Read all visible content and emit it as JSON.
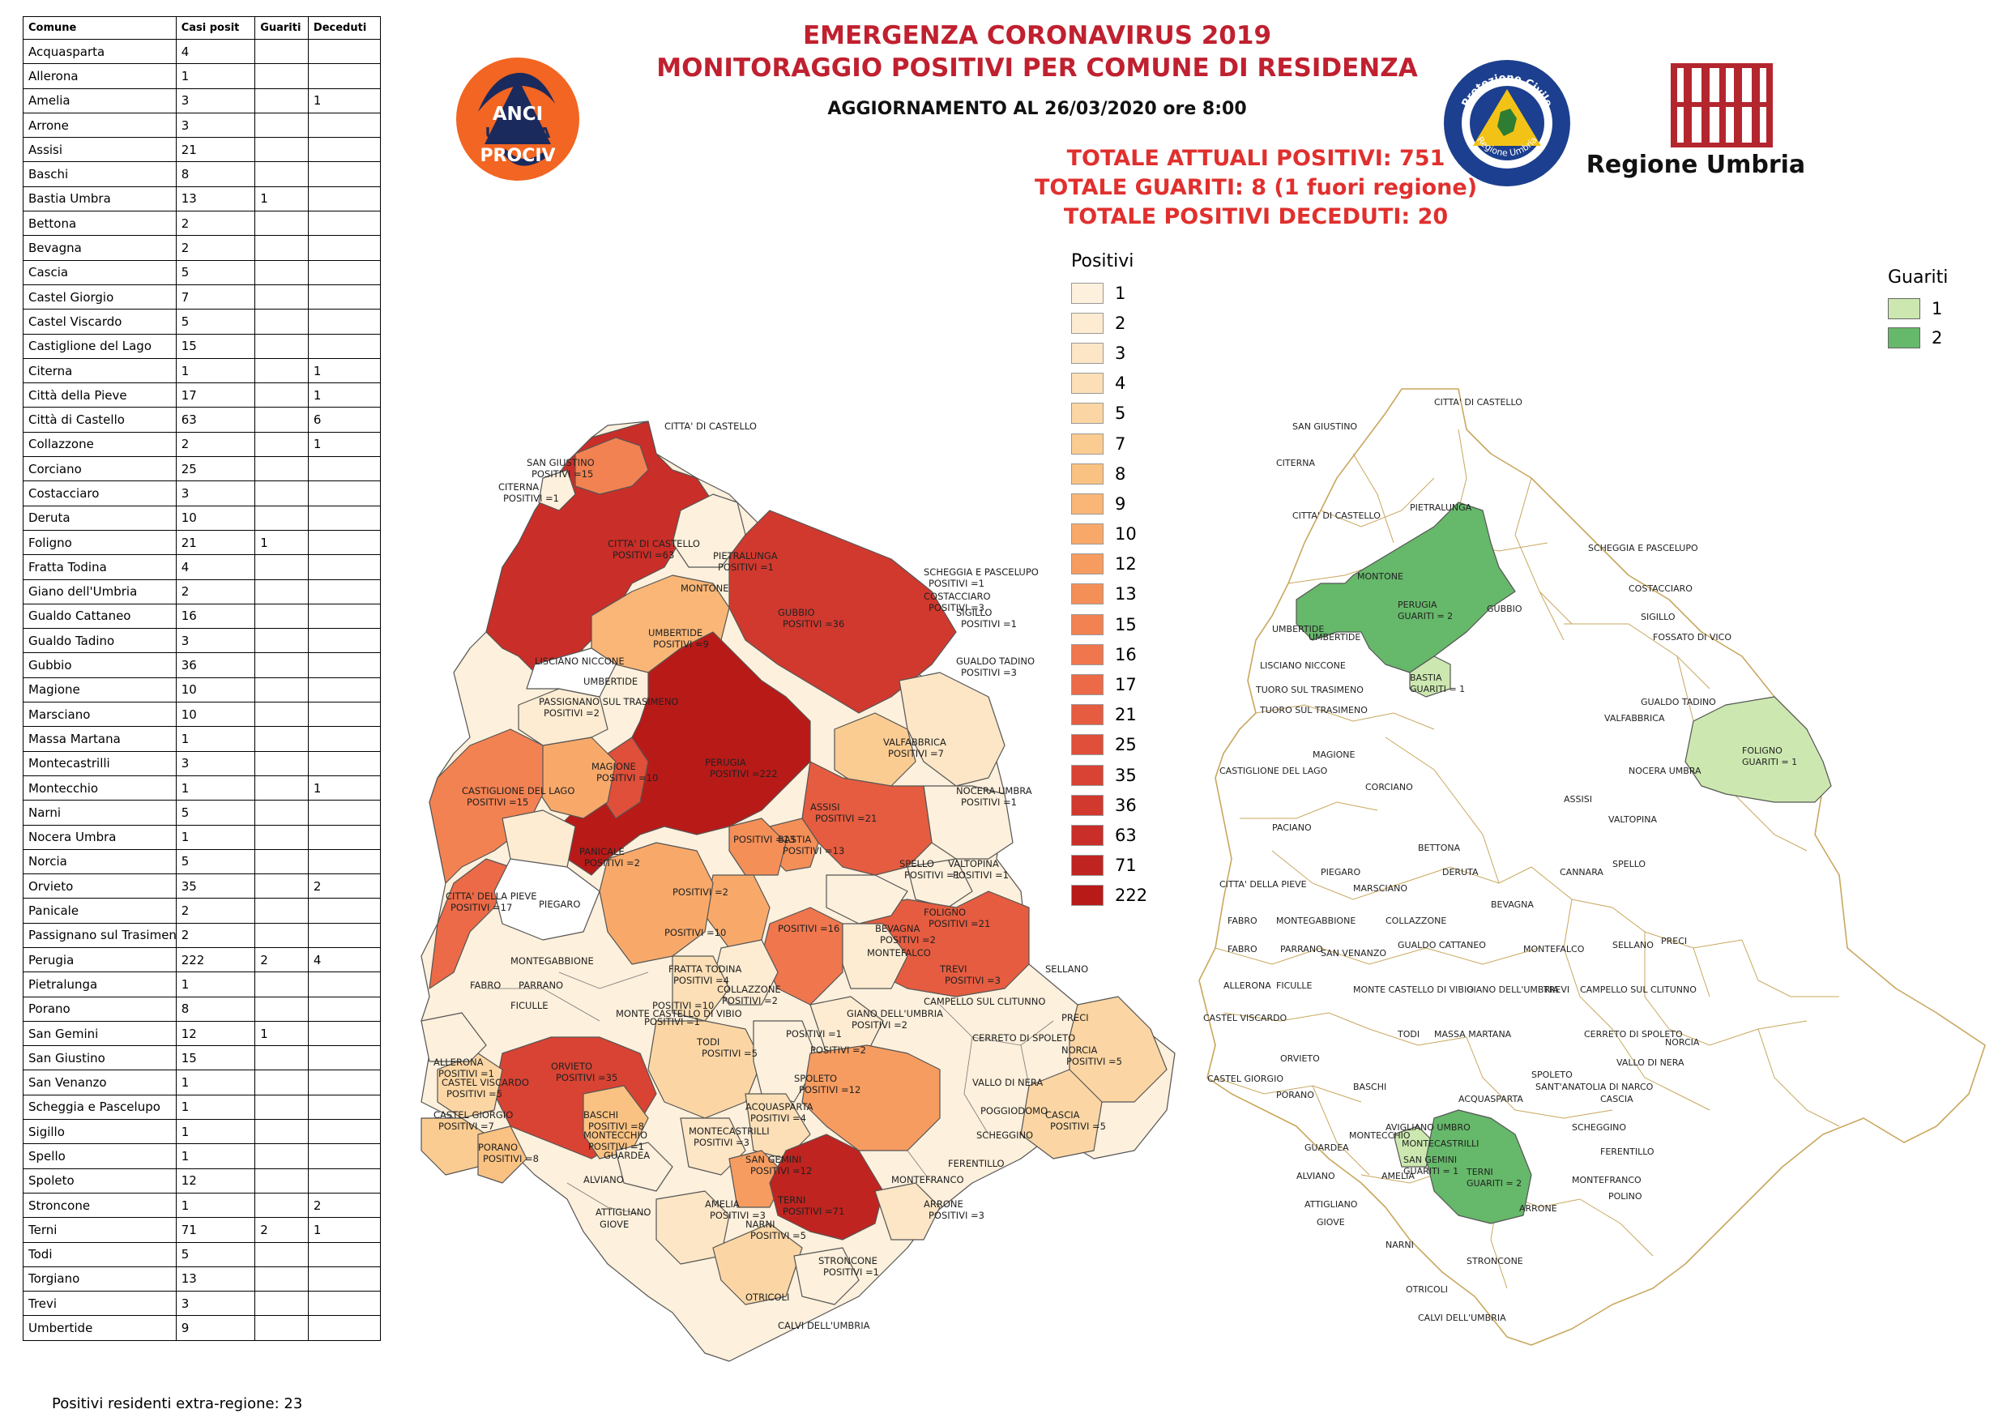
{
  "header": {
    "title_line1": "EMERGENZA CORONAVIRUS 2019",
    "title_line2": "MONITORAGGIO POSITIVI PER COMUNE DI RESIDENZA",
    "update": "AGGIORNAMENTO AL 26/03/2020 ore 8:00",
    "total_positive": "TOTALE ATTUALI POSITIVI: 751",
    "total_recovered": "TOTALE GUARITI:  8 (1 fuori regione)",
    "total_deceased": "TOTALE POSITIVI DECEDUTI: 20"
  },
  "logos": {
    "anci": {
      "line1": "ANCI",
      "line2": "UMBRIA",
      "line3": "PROCIV"
    },
    "protezione_civile": {
      "top": "Protezione Civile",
      "bottom": "Regione Umbria"
    },
    "regione": "Regione Umbria"
  },
  "table": {
    "headers": [
      "Comune",
      "Casi posit",
      "Guariti",
      "Deceduti"
    ],
    "rows": [
      [
        "Acquasparta",
        "4",
        "",
        ""
      ],
      [
        "Allerona",
        "1",
        "",
        ""
      ],
      [
        "Amelia",
        "3",
        "",
        "1"
      ],
      [
        "Arrone",
        "3",
        "",
        ""
      ],
      [
        "Assisi",
        "21",
        "",
        ""
      ],
      [
        "Baschi",
        "8",
        "",
        ""
      ],
      [
        "Bastia Umbra",
        "13",
        "1",
        ""
      ],
      [
        "Bettona",
        "2",
        "",
        ""
      ],
      [
        "Bevagna",
        "2",
        "",
        ""
      ],
      [
        "Cascia",
        "5",
        "",
        ""
      ],
      [
        "Castel Giorgio",
        "7",
        "",
        ""
      ],
      [
        "Castel Viscardo",
        "5",
        "",
        ""
      ],
      [
        "Castiglione del Lago",
        "15",
        "",
        ""
      ],
      [
        "Citerna",
        "1",
        "",
        "1"
      ],
      [
        "Città  della Pieve",
        "17",
        "",
        "1"
      ],
      [
        "Città  di Castello",
        "63",
        "",
        "6"
      ],
      [
        "Collazzone",
        "2",
        "",
        "1"
      ],
      [
        "Corciano",
        "25",
        "",
        ""
      ],
      [
        "Costacciaro",
        "3",
        "",
        ""
      ],
      [
        "Deruta",
        "10",
        "",
        ""
      ],
      [
        "Foligno",
        "21",
        "1",
        ""
      ],
      [
        "Fratta Todina",
        "4",
        "",
        ""
      ],
      [
        "Giano dell'Umbria",
        "2",
        "",
        ""
      ],
      [
        "Gualdo Cattaneo",
        "16",
        "",
        ""
      ],
      [
        "Gualdo Tadino",
        "3",
        "",
        ""
      ],
      [
        "Gubbio",
        "36",
        "",
        ""
      ],
      [
        "Magione",
        "10",
        "",
        ""
      ],
      [
        "Marsciano",
        "10",
        "",
        ""
      ],
      [
        "Massa Martana",
        "1",
        "",
        ""
      ],
      [
        "Montecastrilli",
        "3",
        "",
        ""
      ],
      [
        "Montecchio",
        "1",
        "",
        "1"
      ],
      [
        "Narni",
        "5",
        "",
        ""
      ],
      [
        "Nocera Umbra",
        "1",
        "",
        ""
      ],
      [
        "Norcia",
        "5",
        "",
        ""
      ],
      [
        "Orvieto",
        "35",
        "",
        "2"
      ],
      [
        "Panicale",
        "2",
        "",
        ""
      ],
      [
        "Passignano sul Trasimeno",
        "2",
        "",
        ""
      ],
      [
        "Perugia",
        "222",
        "2",
        "4"
      ],
      [
        "Pietralunga",
        "1",
        "",
        ""
      ],
      [
        "Porano",
        "8",
        "",
        ""
      ],
      [
        "San Gemini",
        "12",
        "1",
        ""
      ],
      [
        "San Giustino",
        "15",
        "",
        ""
      ],
      [
        "San Venanzo",
        "1",
        "",
        ""
      ],
      [
        "Scheggia e Pascelupo",
        "1",
        "",
        ""
      ],
      [
        "Sigillo",
        "1",
        "",
        ""
      ],
      [
        "Spello",
        "1",
        "",
        ""
      ],
      [
        "Spoleto",
        "12",
        "",
        ""
      ],
      [
        "Stroncone",
        "1",
        "",
        "2"
      ],
      [
        "Terni",
        "71",
        "2",
        "1"
      ],
      [
        "Todi",
        "5",
        "",
        ""
      ],
      [
        "Torgiano",
        "13",
        "",
        ""
      ],
      [
        "Trevi",
        "3",
        "",
        ""
      ],
      [
        "Umbertide",
        "9",
        "",
        ""
      ]
    ]
  },
  "extra_region": "Positivi residenti extra-regione: 23",
  "legend_positivi": {
    "title": "Positivi",
    "items": [
      {
        "label": "1",
        "color": "#fdf0dc"
      },
      {
        "label": "2",
        "color": "#fdecd2"
      },
      {
        "label": "3",
        "color": "#fde6c6"
      },
      {
        "label": "4",
        "color": "#fcdfb6"
      },
      {
        "label": "5",
        "color": "#fbd6a4"
      },
      {
        "label": "7",
        "color": "#fbcc92"
      },
      {
        "label": "8",
        "color": "#fac282"
      },
      {
        "label": "9",
        "color": "#f9b676"
      },
      {
        "label": "10",
        "color": "#f8a96a"
      },
      {
        "label": "12",
        "color": "#f79c60"
      },
      {
        "label": "13",
        "color": "#f58f58"
      },
      {
        "label": "15",
        "color": "#f38252"
      },
      {
        "label": "16",
        "color": "#f0764d"
      },
      {
        "label": "17",
        "color": "#ec6a47"
      },
      {
        "label": "21",
        "color": "#e65c40"
      },
      {
        "label": "25",
        "color": "#df4f39"
      },
      {
        "label": "35",
        "color": "#d84333"
      },
      {
        "label": "36",
        "color": "#d1392e"
      },
      {
        "label": "63",
        "color": "#c92e28"
      },
      {
        "label": "71",
        "color": "#c02420"
      },
      {
        "label": "222",
        "color": "#b81a18"
      }
    ]
  },
  "legend_guariti": {
    "title": "Guariti",
    "items": [
      {
        "label": "1",
        "color": "#cce8b0"
      },
      {
        "label": "2",
        "color": "#66b86a"
      }
    ]
  },
  "map_positivi": {
    "labels": [
      {
        "text": "CITTA' DI CASTELLO",
        "count": ""
      },
      {
        "text": "SAN GIUSTINO",
        "count": "POSITIVI =15"
      },
      {
        "text": "CITERNA",
        "count": "POSITIVI =1"
      },
      {
        "text": "CITTA' DI CASTELLO",
        "count": "POSITIVI =63"
      },
      {
        "text": "PIETRALUNGA",
        "count": "POSITIVI =1"
      },
      {
        "text": "MONTONE",
        "count": ""
      },
      {
        "text": "SCHEGGIA E PASCELUPO",
        "count": "POSITIVI =1"
      },
      {
        "text": "COSTACCIARO",
        "count": "POSITIVI =3"
      },
      {
        "text": "SIGILLO",
        "count": "POSITIVI =1"
      },
      {
        "text": "GUBBIO",
        "count": "POSITIVI =36"
      },
      {
        "text": "UMBERTIDE",
        "count": "POSITIVI =9"
      },
      {
        "text": "LISCIANO NICCONE",
        "count": ""
      },
      {
        "text": "PASSIGNANO SUL TRASIMENO",
        "count": "POSITIVI =2"
      },
      {
        "text": "GUALDO TADINO",
        "count": "POSITIVI =3"
      },
      {
        "text": "VALFABBRICA",
        "count": "POSITIVI =7"
      },
      {
        "text": "PERUGIA",
        "count": "POSITIVI =222"
      },
      {
        "text": "MAGIONE",
        "count": "POSITIVI =10"
      },
      {
        "text": "CASTIGLIONE DEL LAGO",
        "count": "POSITIVI =15"
      },
      {
        "text": "NOCERA UMBRA",
        "count": "POSITIVI =1"
      },
      {
        "text": "ASSISI",
        "count": "POSITIVI =21"
      },
      {
        "text": "BASTIA",
        "count": "POSITIVI =13"
      },
      {
        "text": "VALTOPINA",
        "count": "POSITIVI =1"
      },
      {
        "text": "PANICALE",
        "count": "POSITIVI =2"
      },
      {
        "text": "CITTA' DELLA PIEVE",
        "count": "POSITIVI =17"
      },
      {
        "text": "PIEGARO",
        "count": ""
      },
      {
        "text": "SPELLO",
        "count": "POSITIVI =1"
      },
      {
        "text": "FOLIGNO",
        "count": "POSITIVI =21"
      },
      {
        "text": "MONTEGABBIONE",
        "count": ""
      },
      {
        "text": "BEVAGNA",
        "count": "POSITIVI =2"
      },
      {
        "text": "SELLANO",
        "count": ""
      },
      {
        "text": "PRECI",
        "count": ""
      },
      {
        "text": "FRATTA TODINA",
        "count": "POSITIVI =4"
      },
      {
        "text": "TREVI",
        "count": "POSITIVI =3"
      },
      {
        "text": "CAMPELLO SUL CLITUNNO",
        "count": ""
      },
      {
        "text": "FICULLE",
        "count": ""
      },
      {
        "text": "FABRO",
        "count": ""
      },
      {
        "text": "PARRANO",
        "count": ""
      },
      {
        "text": "MONTEFALCO",
        "count": ""
      },
      {
        "text": "ALLERONA",
        "count": "POSITIVI =1"
      },
      {
        "text": "MONTE CASTELLO DI VIBIO",
        "count": ""
      },
      {
        "text": "GIANO DELL'UMBRIA",
        "count": "POSITIVI =2"
      },
      {
        "text": "CERRETO DI SPOLETO",
        "count": ""
      },
      {
        "text": "TODI",
        "count": "POSITIVI =5"
      },
      {
        "text": "NORCIA",
        "count": "POSITIVI =5"
      },
      {
        "text": "CASTEL VISCARDO",
        "count": "POSITIVI =5"
      },
      {
        "text": "ORVIETO",
        "count": "POSITIVI =35"
      },
      {
        "text": "VALLO DI NERA",
        "count": ""
      },
      {
        "text": "SPOLETO",
        "count": "POSITIVI =12"
      },
      {
        "text": "POGGIODOMO",
        "count": ""
      },
      {
        "text": "CASTEL GIORGIO",
        "count": "POSITIVI =7"
      },
      {
        "text": "BASCHI",
        "count": "POSITIVI =8"
      },
      {
        "text": "PORANO",
        "count": "POSITIVI =8"
      },
      {
        "text": "ACQUASPARTA",
        "count": "POSITIVI =4"
      },
      {
        "text": "CASCIA",
        "count": "POSITIVI =5"
      },
      {
        "text": "SCHEGGINO",
        "count": ""
      },
      {
        "text": "MONTECCHIO",
        "count": "POSITIVI =1"
      },
      {
        "text": "MONTECASTRILLI",
        "count": "POSITIVI =3"
      },
      {
        "text": "GUARDEA",
        "count": ""
      },
      {
        "text": "FERENTILLO",
        "count": ""
      },
      {
        "text": "SAN GEMINI",
        "count": "POSITIVI =12"
      },
      {
        "text": "ALVIANO",
        "count": ""
      },
      {
        "text": "MONTEFRANCO",
        "count": ""
      },
      {
        "text": "AMELIA",
        "count": "POSITIVI =3"
      },
      {
        "text": "TERNI",
        "count": "POSITIVI =71"
      },
      {
        "text": "ARRONE",
        "count": "POSITIVI =3"
      },
      {
        "text": "ATTIGLIANO",
        "count": ""
      },
      {
        "text": "GIOVE",
        "count": ""
      },
      {
        "text": "NARNI",
        "count": "POSITIVI =5"
      },
      {
        "text": "STRONCONE",
        "count": "POSITIVI =1"
      },
      {
        "text": "OTRICOLI",
        "count": ""
      },
      {
        "text": "CALVI DELL'UMBRIA",
        "count": ""
      },
      {
        "text": "UMBERTIDE",
        "count": ""
      },
      {
        "text": "POSITIVI =13",
        "count": ""
      },
      {
        "text": "POSITIVI =2",
        "count": ""
      },
      {
        "text": "POSITIVI =10",
        "count": ""
      },
      {
        "text": "POSITIVI =1",
        "count": ""
      },
      {
        "text": "POSITIVI =16",
        "count": ""
      },
      {
        "text": "COLLAZZONE",
        "count": "POSITIVI =2"
      },
      {
        "text": "POSITIVI =10",
        "count": ""
      },
      {
        "text": "POSITIVI =1",
        "count": ""
      },
      {
        "text": "POSITIVI =2",
        "count": ""
      }
    ]
  },
  "map_guariti": {
    "labels": [
      "CITTA' DI CASTELLO",
      "SAN GIUSTINO",
      "CITERNA",
      "CITTA' DI CASTELLO",
      "PIETRALUNGA",
      "SCHEGGIA E PASCELUPO",
      "MONTONE",
      "GUBBIO",
      "COSTACCIARO",
      "SIGILLO",
      "UMBERTIDE",
      "UMBERTIDE",
      "FOSSATO DI VICO",
      "LISCIANO NICCONE",
      "TUORO SUL TRASIMENO",
      "TUORO SUL TRASIMENO",
      "GUALDO TADINO",
      "VALFABBRICA",
      "MAGIONE",
      "CASTIGLIONE DEL LAGO",
      "NOCERA UMBRA",
      "ASSISI",
      "VALTOPINA",
      "PACIANO",
      "CORCIANO",
      "BETTONA",
      "SPELLO",
      "CITTA' DELLA PIEVE",
      "PIEGARO",
      "MARSCIANO",
      "DERUTA",
      "CANNARA",
      "FABRO",
      "MONTEGABBIONE",
      "COLLAZZONE",
      "BEVAGNA",
      "FABRO",
      "PARRANO",
      "SAN VENANZO",
      "GUALDO CATTANEO",
      "MONTEFALCO",
      "SELLANO",
      "PRECI",
      "ALLERONA",
      "FICULLE",
      "MONTE CASTELLO DI VIBIO",
      "GIANO DELL'UMBRIA",
      "TREVI",
      "CAMPELLO SUL CLITUNNO",
      "CASTEL VISCARDO",
      "TODI",
      "MASSA MARTANA",
      "CERRETO DI SPOLETO",
      "NORCIA",
      "VALLO DI NERA",
      "ORVIETO",
      "CASTEL GIORGIO",
      "SPOLETO",
      "SANT'ANATOLIA DI NARCO",
      "BASCHI",
      "PORANO",
      "ACQUASPARTA",
      "CASCIA",
      "SCHEGGINO",
      "AVIGLIANO UMBRO",
      "GUARDEA",
      "MONTECCHIO",
      "MONTECASTRILLI",
      "FERENTILLO",
      "ALVIANO",
      "AMELIA",
      "MONTEFRANCO",
      "POLINO",
      "ARRONE",
      "ATTIGLIANO",
      "GIOVE",
      "NARNI",
      "STRONCONE",
      "OTRICOLI",
      "CALVI DELL'UMBRIA"
    ],
    "perugia": {
      "name": "PERUGIA",
      "count": "GUARITI = 2"
    },
    "bastia": {
      "name": "BASTIA",
      "count": "GUARITI = 1"
    },
    "foligno": {
      "name": "FOLIGNO",
      "count": "GUARITI = 1"
    },
    "san_gemini": {
      "name": "SAN GEMINI",
      "count": "GUARITI = 1"
    },
    "terni": {
      "name": "TERNI",
      "count": "GUARITI = 2"
    }
  }
}
